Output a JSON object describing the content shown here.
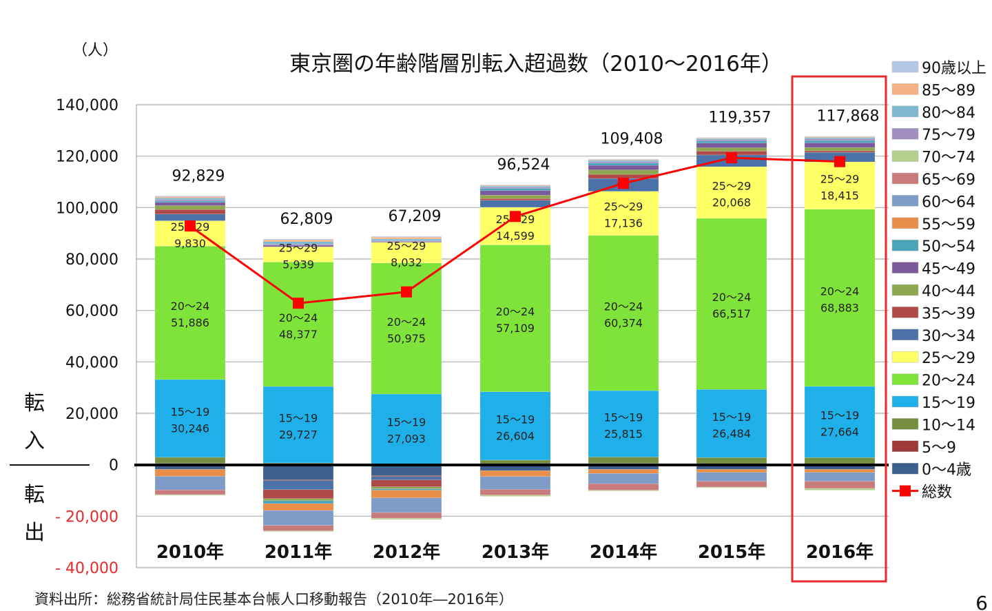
{
  "chart_data": {
    "type": "bar",
    "stacked": true,
    "title": "東京圏の年齢階層別転入超過数（2010～2016年）",
    "unit_label": "（人）",
    "ylabel_positive": "転入",
    "ylabel_negative": "転出",
    "ylim": [
      -40000,
      140000
    ],
    "yticks": [
      140000,
      120000,
      100000,
      80000,
      60000,
      40000,
      20000,
      0,
      -20000,
      -40000
    ],
    "ytick_labels": [
      "140,000",
      "120,000",
      "100,000",
      "80,000",
      "60,000",
      "40,000",
      "20,000",
      "0",
      "- 20,000",
      "- 40,000"
    ],
    "grid": true,
    "legend_position": "right",
    "categories": [
      "2010年",
      "2011年",
      "2012年",
      "2013年",
      "2014年",
      "2015年",
      "2016年"
    ],
    "series": [
      {
        "name": "0～4歳",
        "color": "#3d5f8e",
        "values": [
          -1800,
          -5900,
          -4300,
          -2300,
          -1800,
          -1800,
          -1800
        ]
      },
      {
        "name": "5～9",
        "color": "#9e3a38",
        "values": [
          500,
          -300,
          -300,
          300,
          500,
          300,
          300
        ]
      },
      {
        "name": "10～14",
        "color": "#758e40",
        "values": [
          2400,
          700,
          400,
          1500,
          2500,
          2500,
          2500
        ]
      },
      {
        "name": "15～19",
        "color": "#1fb0ea",
        "values": [
          30246,
          29727,
          27093,
          26604,
          25815,
          26484,
          27664
        ]
      },
      {
        "name": "20～24",
        "color": "#7fe33a",
        "values": [
          51886,
          48377,
          50975,
          57109,
          60374,
          66517,
          68883
        ]
      },
      {
        "name": "25～29",
        "color": "#ffff66",
        "values": [
          9830,
          5939,
          8032,
          14599,
          17136,
          20068,
          18415
        ]
      },
      {
        "name": "30～34",
        "color": "#4a72a8",
        "values": [
          2600,
          -3500,
          -1300,
          2700,
          5000,
          4600,
          3700
        ]
      },
      {
        "name": "35～39",
        "color": "#b04a48",
        "values": [
          1800,
          -3500,
          -2700,
          700,
          1600,
          1500,
          600
        ]
      },
      {
        "name": "40～44",
        "color": "#8fa84f",
        "values": [
          1500,
          -800,
          -800,
          1300,
          1700,
          1300,
          1300
        ]
      },
      {
        "name": "45～49",
        "color": "#7a5a9a",
        "values": [
          1300,
          600,
          300,
          1800,
          1800,
          1800,
          1800
        ]
      },
      {
        "name": "50～54",
        "color": "#4aa3b8",
        "values": [
          500,
          -1100,
          -500,
          800,
          900,
          800,
          900
        ]
      },
      {
        "name": "55～59",
        "color": "#e88e48",
        "values": [
          -2700,
          -2700,
          -3000,
          -2300,
          -1600,
          -1200,
          -1200
        ]
      },
      {
        "name": "60～64",
        "color": "#7f9cc8",
        "values": [
          -5300,
          -5800,
          -5700,
          -5000,
          -4000,
          -3500,
          -3500
        ]
      },
      {
        "name": "65～69",
        "color": "#c97b7b",
        "values": [
          -1800,
          -2100,
          -2200,
          -2200,
          -2500,
          -2200,
          -2700
        ]
      },
      {
        "name": "70～74",
        "color": "#b5cf8f",
        "values": [
          -300,
          -300,
          -500,
          -500,
          -300,
          -300,
          -700
        ]
      },
      {
        "name": "75～79",
        "color": "#a18fbf",
        "values": [
          600,
          400,
          300,
          500,
          600,
          600,
          700
        ]
      },
      {
        "name": "80～84",
        "color": "#7fb8d0",
        "values": [
          600,
          1000,
          700,
          500,
          500,
          400,
          500
        ]
      },
      {
        "name": "85～89",
        "color": "#f4b183",
        "values": [
          500,
          700,
          700,
          300,
          300,
          200,
          300
        ]
      },
      {
        "name": "90歳以上",
        "color": "#b4c7e7",
        "values": [
          300,
          300,
          300,
          200,
          200,
          200,
          200
        ]
      }
    ],
    "labeled_series": [
      "15～19",
      "20～24",
      "25～29"
    ],
    "data_labels": {
      "15～19": [
        "30,246",
        "29,727",
        "27,093",
        "26,604",
        "25,815",
        "26,484",
        "27,664"
      ],
      "20～24": [
        "51,886",
        "48,377",
        "50,975",
        "57,109",
        "60,374",
        "66,517",
        "68,883"
      ],
      "25～29": [
        "9,830",
        "5,939",
        "8,032",
        "14,599",
        "17,136",
        "20,068",
        "18,415"
      ]
    },
    "line_series": {
      "name": "総数",
      "color": "#ff0000",
      "values": [
        92829,
        62809,
        67209,
        96524,
        109408,
        119357,
        117868
      ],
      "labels": [
        "92,829",
        "62,809",
        "67,209",
        "96,524",
        "109,408",
        "119,357",
        "117,868"
      ]
    },
    "highlight_category": "2016年",
    "highlight_color": "#e8282a"
  },
  "footer": {
    "source": "資料出所：総務省統計局住民基本台帳人口移動報告（2010年―2016年）",
    "page_number": "6"
  }
}
